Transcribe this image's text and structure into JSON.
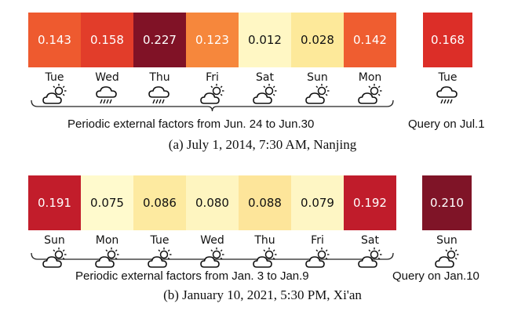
{
  "panels": [
    {
      "days": [
        {
          "value": "0.143",
          "day": "Tue",
          "weather": "sun-cloud",
          "color": "#ee5a2f",
          "text": "#ffffff"
        },
        {
          "value": "0.158",
          "day": "Wed",
          "weather": "rain",
          "color": "#e23d2a",
          "text": "#ffffff"
        },
        {
          "value": "0.227",
          "day": "Thu",
          "weather": "rain",
          "color": "#801226",
          "text": "#ffffff"
        },
        {
          "value": "0.123",
          "day": "Fri",
          "weather": "sun-cloud",
          "color": "#f6873c",
          "text": "#ffffff"
        },
        {
          "value": "0.012",
          "day": "Sat",
          "weather": "sun-cloud",
          "color": "#fff7c4",
          "text": "#111111"
        },
        {
          "value": "0.028",
          "day": "Sun",
          "weather": "sun-cloud",
          "color": "#fde99a",
          "text": "#111111"
        },
        {
          "value": "0.142",
          "day": "Mon",
          "weather": "sun-cloud",
          "color": "#ef5d30",
          "text": "#ffffff"
        }
      ],
      "query": {
        "value": "0.168",
        "day": "Tue",
        "weather": "rain",
        "color": "#dc2e28",
        "text": "#ffffff"
      },
      "periodic_label": "Periodic external factors from Jun. 24 to Jun.30",
      "query_label": "Query on Jul.1",
      "caption": "(a) July 1, 2014, 7:30 AM, Nanjing"
    },
    {
      "days": [
        {
          "value": "0.191",
          "day": "Sun",
          "weather": "sun-cloud",
          "color": "#c21d2b",
          "text": "#ffffff"
        },
        {
          "value": "0.075",
          "day": "Mon",
          "weather": "sun-cloud",
          "color": "#fffacd",
          "text": "#111111"
        },
        {
          "value": "0.086",
          "day": "Tue",
          "weather": "sun-cloud",
          "color": "#fdeaa0",
          "text": "#111111"
        },
        {
          "value": "0.080",
          "day": "Wed",
          "weather": "sun-cloud",
          "color": "#fef5c0",
          "text": "#111111"
        },
        {
          "value": "0.088",
          "day": "Thu",
          "weather": "sun-cloud",
          "color": "#fde59a",
          "text": "#111111"
        },
        {
          "value": "0.079",
          "day": "Fri",
          "weather": "sun-cloud",
          "color": "#fef6c4",
          "text": "#111111"
        },
        {
          "value": "0.192",
          "day": "Sat",
          "weather": "sun-cloud",
          "color": "#c01c2b",
          "text": "#ffffff"
        }
      ],
      "query": {
        "value": "0.210",
        "day": "Sun",
        "weather": "sun-cloud",
        "color": "#7f1427",
        "text": "#ffffff"
      },
      "periodic_label": "Periodic external factors from Jan. 3 to Jan.9",
      "query_label": "Query on Jan.10",
      "caption": "(b) January 10, 2021, 5:30 PM, Xi'an"
    }
  ]
}
